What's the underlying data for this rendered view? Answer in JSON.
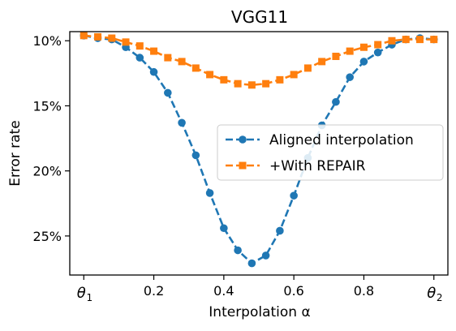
{
  "chart_data": {
    "type": "line",
    "title": "VGG11",
    "xlabel": "Interpolation α",
    "ylabel": "Error rate",
    "xlim": [
      -0.04,
      1.04
    ],
    "ylim": [
      9.3,
      28.0
    ],
    "y_inverted": true,
    "x_ticks": [
      {
        "value": 0.0,
        "label": "θ",
        "sub": "1"
      },
      {
        "value": 0.2,
        "label": "0.2",
        "sub": ""
      },
      {
        "value": 0.4,
        "label": "0.4",
        "sub": ""
      },
      {
        "value": 0.6,
        "label": "0.6",
        "sub": ""
      },
      {
        "value": 0.8,
        "label": "0.8",
        "sub": ""
      },
      {
        "value": 1.0,
        "label": "θ",
        "sub": "2"
      }
    ],
    "y_ticks": [
      {
        "value": 10,
        "label": "10%"
      },
      {
        "value": 15,
        "label": "15%"
      },
      {
        "value": 20,
        "label": "20%"
      },
      {
        "value": 25,
        "label": "25%"
      }
    ],
    "legend_position": "center-right",
    "grid": false,
    "x": [
      0.0,
      0.04,
      0.08,
      0.12,
      0.16,
      0.2,
      0.24,
      0.28,
      0.32,
      0.36,
      0.4,
      0.44,
      0.48,
      0.52,
      0.56,
      0.6,
      0.64,
      0.68,
      0.72,
      0.76,
      0.8,
      0.84,
      0.88,
      0.92,
      0.96,
      1.0
    ],
    "series": [
      {
        "name": "Aligned interpolation",
        "color": "#1f77b4",
        "marker": "circle",
        "values": [
          9.6,
          9.8,
          9.9,
          10.5,
          11.3,
          12.4,
          14.0,
          16.3,
          18.8,
          21.7,
          24.4,
          26.1,
          27.1,
          26.5,
          24.6,
          21.9,
          19.0,
          16.5,
          14.7,
          12.8,
          11.6,
          10.9,
          10.3,
          9.9,
          9.8,
          9.9
        ]
      },
      {
        "name": "+With REPAIR",
        "color": "#ff7f0e",
        "marker": "square",
        "values": [
          9.6,
          9.7,
          9.8,
          10.1,
          10.4,
          10.8,
          11.3,
          11.6,
          12.1,
          12.6,
          13.0,
          13.3,
          13.4,
          13.3,
          13.0,
          12.6,
          12.1,
          11.6,
          11.2,
          10.8,
          10.5,
          10.3,
          10.0,
          9.9,
          9.9,
          9.9
        ]
      }
    ]
  }
}
